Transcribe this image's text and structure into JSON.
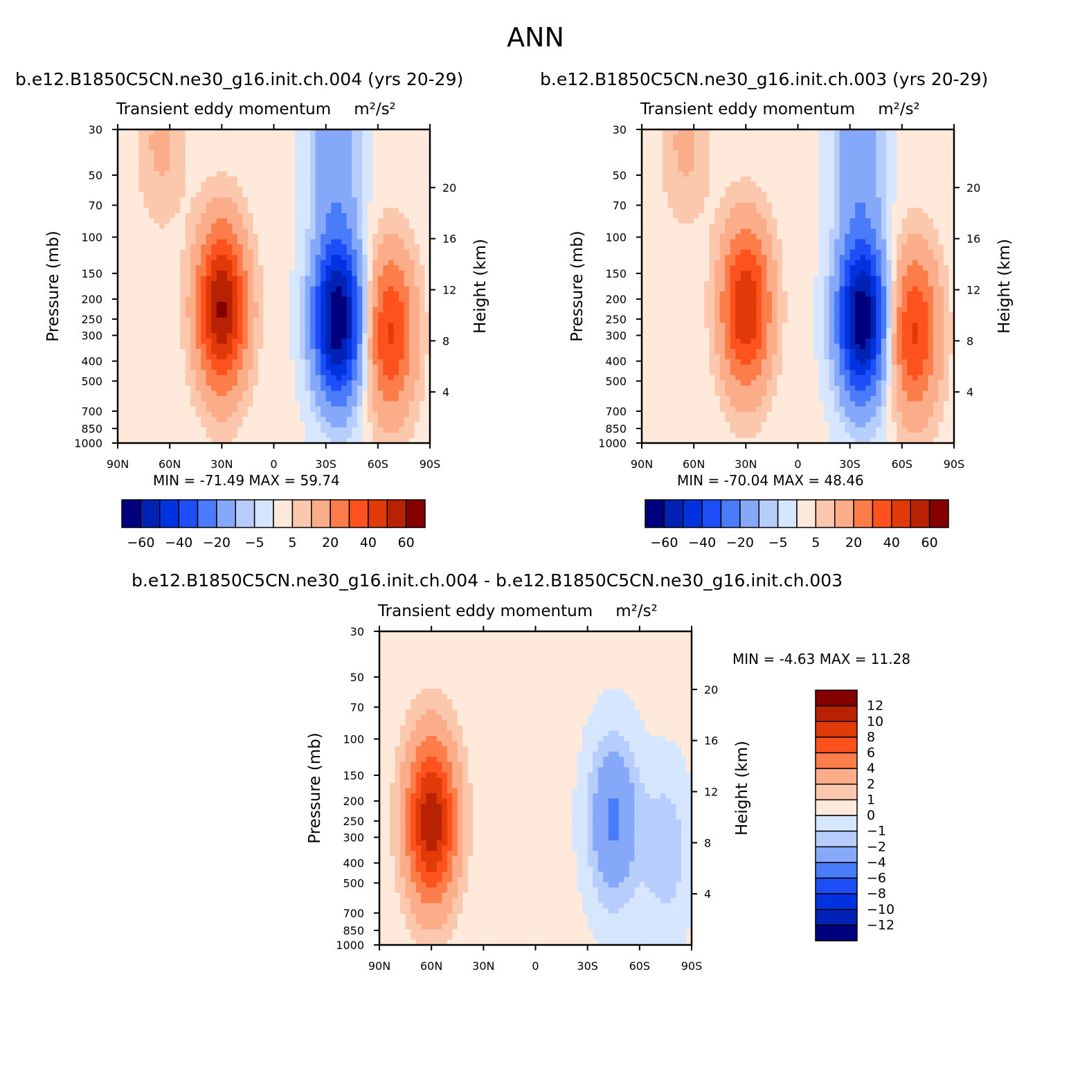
{
  "figure": {
    "season": "ANN",
    "panel_titles": [
      "b.e12.B1850C5CN.ne30_g16.init.ch.004 (yrs 20-29)",
      "b.e12.B1850C5CN.ne30_g16.init.ch.003 (yrs 20-29)",
      "b.e12.B1850C5CN.ne30_g16.init.ch.004 - b.e12.B1850C5CN.ne30_g16.init.ch.003"
    ],
    "variable": "Transient eddy momentum",
    "units": "m²/s²",
    "left_axis_label": "Pressure (mb)",
    "right_axis_label": "Height (km)",
    "minmax": [
      "MIN =  -71.49   MAX =   59.74",
      "MIN =  -70.04   MAX =   48.46",
      "MIN =   -4.63   MAX =   11.28"
    ]
  },
  "chart_data": [
    {
      "type": "heatmap",
      "title": "b.e12.B1850C5CN.ne30_g16.init.ch.004 (yrs 20-29)",
      "subtitle": "Transient eddy momentum   m²/s²",
      "xlabel": "",
      "ylabel": "Pressure (mb)",
      "ylabel_right": "Height (km)",
      "x_ticks": [
        "90N",
        "60N",
        "30N",
        "0",
        "30S",
        "60S",
        "90S"
      ],
      "x_range": [
        90,
        -90
      ],
      "y_ticks": [
        30,
        50,
        70,
        100,
        150,
        200,
        250,
        300,
        400,
        500,
        700,
        850,
        1000
      ],
      "y_scale": "log",
      "y_range": [
        1000,
        30
      ],
      "y_right_ticks": [
        4,
        8,
        12,
        16,
        20
      ],
      "features": [
        {
          "lat": 30,
          "p": 220,
          "value": 59.74,
          "sign": "positive"
        },
        {
          "lat": -37,
          "p": 250,
          "value": -71.49,
          "sign": "negative"
        },
        {
          "lat": -67,
          "p": 290,
          "value": 40,
          "sign": "positive"
        },
        {
          "lat": -35,
          "p": 38,
          "value": -20,
          "sign": "negative"
        },
        {
          "lat": 65,
          "p": 35,
          "value": 10,
          "sign": "positive"
        }
      ],
      "min": -71.49,
      "max": 59.74,
      "colorbar": {
        "orientation": "horizontal",
        "labels": [
          "-60",
          "-40",
          "-20",
          "-5",
          "5",
          "20",
          "40",
          "60"
        ],
        "colors": [
          "#00007f",
          "#0022b4",
          "#0033e0",
          "#1d4ef8",
          "#4a7bf8",
          "#86a8f9",
          "#b7cefc",
          "#d6e6fe",
          "#ffe9da",
          "#fcc8ad",
          "#fbac88",
          "#fd7d4a",
          "#fd521d",
          "#e13a09",
          "#b92103",
          "#870000"
        ]
      }
    },
    {
      "type": "heatmap",
      "title": "b.e12.B1850C5CN.ne30_g16.init.ch.003 (yrs 20-29)",
      "subtitle": "Transient eddy momentum   m²/s²",
      "xlabel": "",
      "ylabel": "Pressure (mb)",
      "ylabel_right": "Height (km)",
      "x_ticks": [
        "90N",
        "60N",
        "30N",
        "0",
        "30S",
        "60S",
        "90S"
      ],
      "x_range": [
        90,
        -90
      ],
      "y_ticks": [
        30,
        50,
        70,
        100,
        150,
        200,
        250,
        300,
        400,
        500,
        700,
        850,
        1000
      ],
      "y_scale": "log",
      "y_range": [
        1000,
        30
      ],
      "y_right_ticks": [
        4,
        8,
        12,
        16,
        20
      ],
      "features": [
        {
          "lat": 30,
          "p": 220,
          "value": 48.46,
          "sign": "positive"
        },
        {
          "lat": -37,
          "p": 250,
          "value": -70.04,
          "sign": "negative"
        },
        {
          "lat": -67,
          "p": 290,
          "value": 40,
          "sign": "positive"
        },
        {
          "lat": -35,
          "p": 38,
          "value": -20,
          "sign": "negative"
        },
        {
          "lat": 65,
          "p": 35,
          "value": 10,
          "sign": "positive"
        }
      ],
      "min": -70.04,
      "max": 48.46,
      "colorbar": {
        "orientation": "horizontal",
        "labels": [
          "-60",
          "-40",
          "-20",
          "-5",
          "5",
          "20",
          "40",
          "60"
        ],
        "colors": [
          "#00007f",
          "#0022b4",
          "#0033e0",
          "#1d4ef8",
          "#4a7bf8",
          "#86a8f9",
          "#b7cefc",
          "#d6e6fe",
          "#ffe9da",
          "#fcc8ad",
          "#fbac88",
          "#fd7d4a",
          "#fd521d",
          "#e13a09",
          "#b92103",
          "#870000"
        ]
      }
    },
    {
      "type": "heatmap",
      "title": "b.e12.B1850C5CN.ne30_g16.init.ch.004 - b.e12.B1850C5CN.ne30_g16.init.ch.003",
      "subtitle": "Transient eddy momentum   m²/s²",
      "xlabel": "",
      "ylabel": "Pressure (mb)",
      "ylabel_right": "Height (km)",
      "x_ticks": [
        "90N",
        "60N",
        "30N",
        "0",
        "30S",
        "60S",
        "90S"
      ],
      "x_range": [
        90,
        -90
      ],
      "y_ticks": [
        30,
        50,
        70,
        100,
        150,
        200,
        250,
        300,
        400,
        500,
        700,
        850,
        1000
      ],
      "y_scale": "log",
      "y_range": [
        1000,
        30
      ],
      "y_right_ticks": [
        4,
        8,
        12,
        16,
        20
      ],
      "features": [
        {
          "lat": 60,
          "p": 250,
          "value": 11.28,
          "sign": "positive"
        },
        {
          "lat": -45,
          "p": 250,
          "value": -4.63,
          "sign": "negative"
        },
        {
          "lat": -75,
          "p": 350,
          "value": -2,
          "sign": "negative"
        }
      ],
      "min": -4.63,
      "max": 11.28,
      "colorbar": {
        "orientation": "vertical",
        "labels": [
          "12",
          "10",
          "8",
          "6",
          "4",
          "2",
          "1",
          "0",
          "-1",
          "-2",
          "-4",
          "-6",
          "-8",
          "-10",
          "-12"
        ],
        "colors": [
          "#870000",
          "#b92103",
          "#e13a09",
          "#fd521d",
          "#fd7d4a",
          "#fbac88",
          "#fcc8ad",
          "#ffe9da",
          "#d6e6fe",
          "#b7cefc",
          "#86a8f9",
          "#4a7bf8",
          "#1d4ef8",
          "#0033e0",
          "#0022b4",
          "#00007f"
        ]
      }
    }
  ]
}
